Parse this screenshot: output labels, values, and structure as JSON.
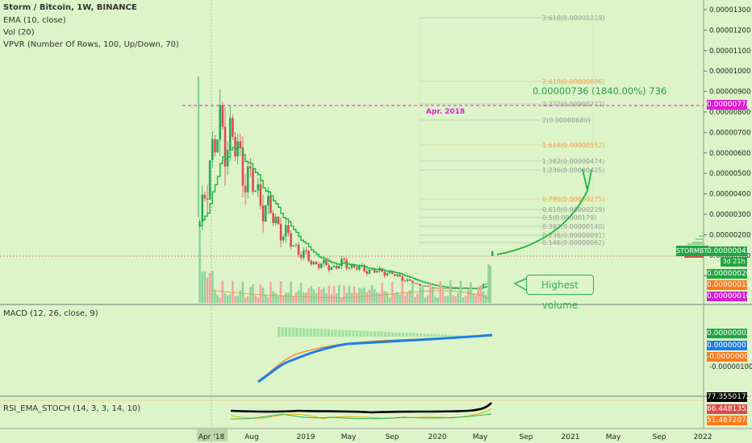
{
  "legend": {
    "title": "Storm / Bitcoin, 1W, BINANCE",
    "ema": "EMA (10, close)",
    "vol": "Vol (20)",
    "vpvr": "VPVR (Number Of Rows, 100, Up/Down, 70)",
    "macd": "MACD (12, 26, close, 9)",
    "rsi": "RSI_EMA_STOCH (14, 3, 3, 14, 10)"
  },
  "annotations": {
    "change": "0.00000736 (1840.00%) 736",
    "peak_date": "Apr. 2018",
    "volume_callout": "Highest volume"
  },
  "colors": {
    "background": "#dcf4c8",
    "up_candle": "#26a65b",
    "down_candle": "#e0484b",
    "ema_line": "#1cb63c",
    "magenta": "#e11dd6",
    "macd_line": "#1e7ee6",
    "signal_line": "#ff7a1a",
    "callout_green": "#2fb451"
  },
  "price_axis": {
    "ticks": [
      "0.00001300",
      "0.00001200",
      "0.00001100",
      "0.00001000",
      "0.00000900",
      "0.00000800",
      "0.00000700",
      "0.00000600",
      "0.00000500",
      "0.00000400",
      "0.00000300",
      "0.00000200",
      "0.00000100",
      "-0.0"
    ]
  },
  "price_badges": {
    "high_line": "0.00000778",
    "last_price": "0.00000041",
    "ticker": "STORMBTC",
    "timer": "3d 21h",
    "vol1": "0.00000020",
    "vol2": "0.00000015",
    "vol3": "0.00000010"
  },
  "macd_axis": {
    "tick": "-0.00000100",
    "badges": [
      "0.00000002",
      "0.00000001",
      "-0.00000002"
    ]
  },
  "rsi_axis": {
    "badges": [
      "77.35501720",
      "66.44813520",
      "51.48720746"
    ]
  },
  "time_axis": [
    "Apr '18",
    "Aug",
    "2019",
    "May",
    "Sep",
    "2020",
    "May",
    "Sep",
    "2021",
    "May",
    "Sep",
    "2022"
  ],
  "fib_levels": [
    {
      "label": "3.618(0.00001219)",
      "color": "#9a9a9a"
    },
    {
      "label": "2.618(0.00000886)",
      "color": "#f0a04b"
    },
    {
      "label": "2.272(0.00000772)",
      "color": "#9a9a9a"
    },
    {
      "label": "2(0.00000680)",
      "color": "#9a9a9a"
    },
    {
      "label": "1.618(0.00000552)",
      "color": "#f0a04b"
    },
    {
      "label": "1.382(0.00000474)",
      "color": "#9a9a9a"
    },
    {
      "label": "1.236(0.00000425)",
      "color": "#9a9a9a"
    },
    {
      "label": "0.786(0.00000275)",
      "color": "#f0a04b"
    },
    {
      "label": "0.618(0.00000219)",
      "color": "#9a9a9a"
    },
    {
      "label": "0.5(0.00000179)",
      "color": "#9a9a9a"
    },
    {
      "label": "0.382(0.00000140)",
      "color": "#9a9a9a"
    },
    {
      "label": "0.236(0.00000091)",
      "color": "#9a9a9a"
    },
    {
      "label": "0.146(0.00000062)",
      "color": "#9a9a9a"
    }
  ],
  "chart_data": {
    "type": "candlestick",
    "title": "Storm / Bitcoin, 1W, BINANCE",
    "x_start": "Apr 2018",
    "price_range": [
      -5e-07,
      1.35e-05
    ],
    "close_series_approx": [
      3e-06,
      6.2e-06,
      7.5e-06,
      7.2e-06,
      6e-06,
      5e-06,
      4.2e-06,
      3.5e-06,
      2.8e-06,
      2.2e-06,
      1.7e-06,
      1.3e-06,
      1.2e-06,
      1.1e-06,
      1.3e-06,
      1.1e-06,
      1e-06,
      9e-07,
      9e-07,
      7e-07,
      5e-07,
      3e-07,
      2e-07,
      1e-07,
      1e-07,
      1e-07,
      1e-07,
      1e-07,
      4e-07
    ],
    "projection_target": 4.7e-06,
    "volume_last": "highest"
  }
}
